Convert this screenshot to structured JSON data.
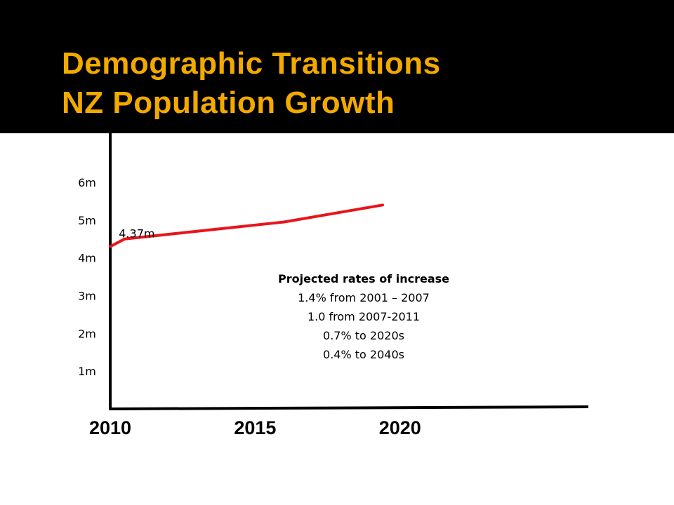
{
  "slide": {
    "title_line1": "Demographic  Transitions",
    "title_line2": "NZ Population Growth",
    "colors": {
      "title_band": "#000000",
      "title_text": "#F2A900",
      "line": "#E8141C",
      "axis": "#000000"
    }
  },
  "chart_data": {
    "type": "line",
    "title": "Demographic  Transitions NZ Population Growth",
    "xlabel": "",
    "ylabel": "",
    "x_ticks": [
      {
        "value": 2010,
        "label": "2010"
      },
      {
        "value": 2015,
        "label": "2015"
      },
      {
        "value": 2020,
        "label": "2020"
      }
    ],
    "y_ticks": [
      {
        "value": 1,
        "label": "1m"
      },
      {
        "value": 2,
        "label": "2m"
      },
      {
        "value": 3,
        "label": "3m"
      },
      {
        "value": 4,
        "label": "4m"
      },
      {
        "value": 5,
        "label": "5m"
      },
      {
        "value": 6,
        "label": "6m"
      }
    ],
    "xlim": [
      2010,
      2026.5
    ],
    "ylim": [
      0,
      7.3
    ],
    "grid": false,
    "series": [
      {
        "color": "#E8141C",
        "points": [
          {
            "x": 2010,
            "y": 4.3
          },
          {
            "x": 2010.5,
            "y": 4.5
          },
          {
            "x": 2016,
            "y": 4.95
          },
          {
            "x": 2019.4,
            "y": 5.4
          }
        ]
      }
    ],
    "annotations": [
      {
        "text": "4.37m",
        "x": 2010.2,
        "y": 4.65
      }
    ],
    "notes": {
      "heading": "Projected rates of increase",
      "lines": [
        "1.4% from 2001 – 2007",
        "1.0 from 2007-2011",
        "0.7% to 2020s",
        "0.4% to 2040s"
      ]
    }
  }
}
